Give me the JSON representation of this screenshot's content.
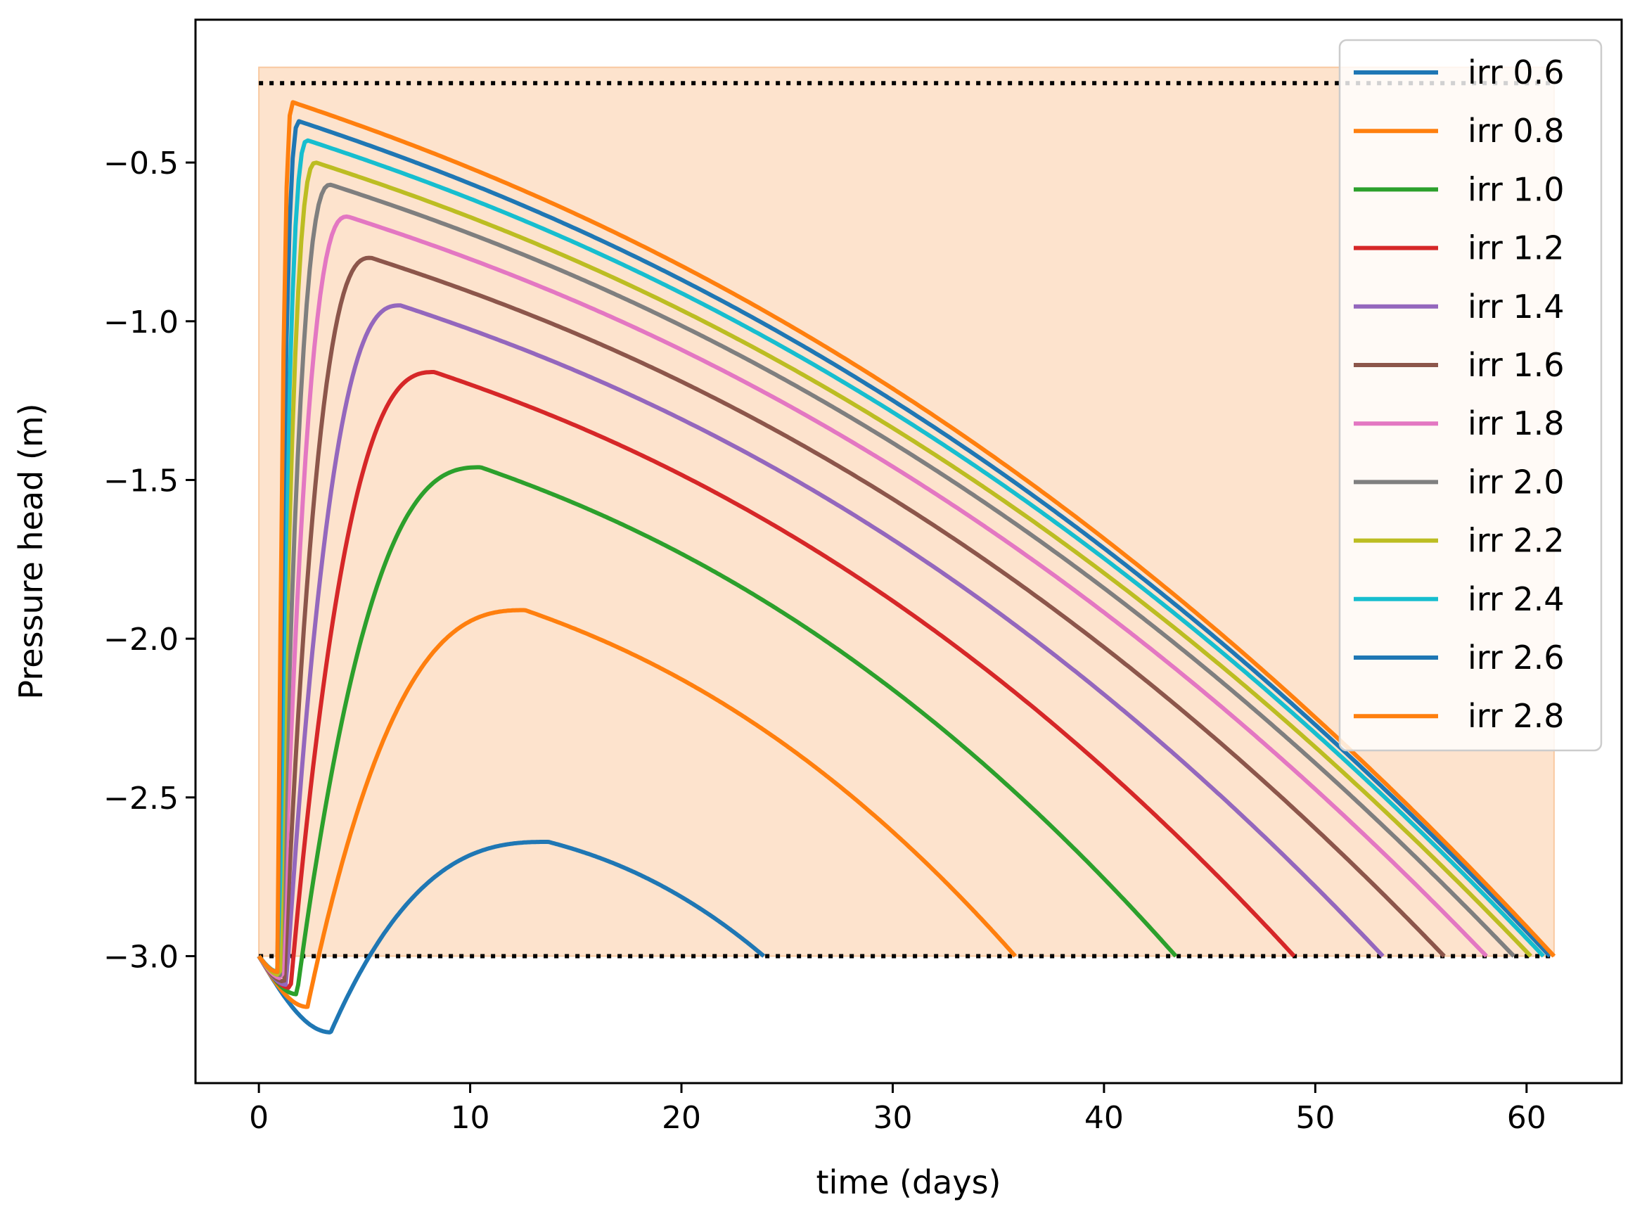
{
  "chart_data": {
    "type": "line",
    "title": "",
    "xlabel": "time (days)",
    "ylabel": "Pressure head (m)",
    "xlim": [
      -3,
      64.5
    ],
    "ylim": [
      -3.4,
      -0.05
    ],
    "xticks": [
      0,
      10,
      20,
      30,
      40,
      50,
      60
    ],
    "yticks": [
      -0.5,
      -1.0,
      -1.5,
      -2.0,
      -2.5,
      -3.0
    ],
    "xtick_labels": [
      "0",
      "10",
      "20",
      "30",
      "40",
      "50",
      "60"
    ],
    "ytick_labels": [
      "−0.5",
      "−1.0",
      "−1.5",
      "−2.0",
      "−2.5",
      "−3.0"
    ],
    "grid": false,
    "legend_position": "upper-right",
    "shaded_band": {
      "x_start": 0,
      "x_end": 61.3,
      "y_low": -3.0,
      "y_high": -0.2,
      "color": "#fde3cd"
    },
    "reference_lines": [
      {
        "y": -0.25,
        "x_start": 0,
        "x_end": 61.3,
        "style": "dotted",
        "color": "#000000"
      },
      {
        "y": -3.0,
        "x_start": 0,
        "x_end": 61.3,
        "style": "dotted",
        "color": "#000000"
      }
    ],
    "series": [
      {
        "name": "irr 0.6",
        "color": "#1f77b4",
        "irr": 0.6,
        "peak_time": 13.7,
        "peak_value": -2.64,
        "end_time": 23.9,
        "min_time": 3.4,
        "min_value": -3.24
      },
      {
        "name": "irr 0.8",
        "color": "#ff7f0e",
        "irr": 0.8,
        "peak_time": 12.6,
        "peak_value": -1.91,
        "end_time": 35.8,
        "min_time": 2.3,
        "min_value": -3.16
      },
      {
        "name": "irr 1.0",
        "color": "#2ca02c",
        "irr": 1.0,
        "peak_time": 10.5,
        "peak_value": -1.46,
        "end_time": 43.4,
        "min_time": 1.8,
        "min_value": -3.12
      },
      {
        "name": "irr 1.2",
        "color": "#d62728",
        "irr": 1.2,
        "peak_time": 8.3,
        "peak_value": -1.16,
        "end_time": 49.0,
        "min_time": 1.5,
        "min_value": -3.1
      },
      {
        "name": "irr 1.4",
        "color": "#9467bd",
        "irr": 1.4,
        "peak_time": 6.7,
        "peak_value": -0.95,
        "end_time": 53.2,
        "min_time": 1.3,
        "min_value": -3.09
      },
      {
        "name": "irr 1.6",
        "color": "#8c564b",
        "irr": 1.6,
        "peak_time": 5.3,
        "peak_value": -0.8,
        "end_time": 56.1,
        "min_time": 1.2,
        "min_value": -3.08
      },
      {
        "name": "irr 1.8",
        "color": "#e377c2",
        "irr": 1.8,
        "peak_time": 4.2,
        "peak_value": -0.67,
        "end_time": 58.1,
        "min_time": 1.1,
        "min_value": -3.07
      },
      {
        "name": "irr 2.0",
        "color": "#7f7f7f",
        "irr": 2.0,
        "peak_time": 3.4,
        "peak_value": -0.57,
        "end_time": 59.4,
        "min_time": 1.05,
        "min_value": -3.06
      },
      {
        "name": "irr 2.2",
        "color": "#bcbd22",
        "irr": 2.2,
        "peak_time": 2.7,
        "peak_value": -0.5,
        "end_time": 60.2,
        "min_time": 1.0,
        "min_value": -3.06
      },
      {
        "name": "irr 2.4",
        "color": "#17becf",
        "irr": 2.4,
        "peak_time": 2.3,
        "peak_value": -0.43,
        "end_time": 60.8,
        "min_time": 0.95,
        "min_value": -3.05
      },
      {
        "name": "irr 2.6",
        "color": "#1f77b4",
        "irr": 2.6,
        "peak_time": 1.9,
        "peak_value": -0.37,
        "end_time": 61.1,
        "min_time": 0.9,
        "min_value": -3.05
      },
      {
        "name": "irr 2.8",
        "color": "#ff7f0e",
        "irr": 2.8,
        "peak_time": 1.6,
        "peak_value": -0.31,
        "end_time": 61.3,
        "min_time": 0.9,
        "min_value": -3.05
      }
    ]
  }
}
